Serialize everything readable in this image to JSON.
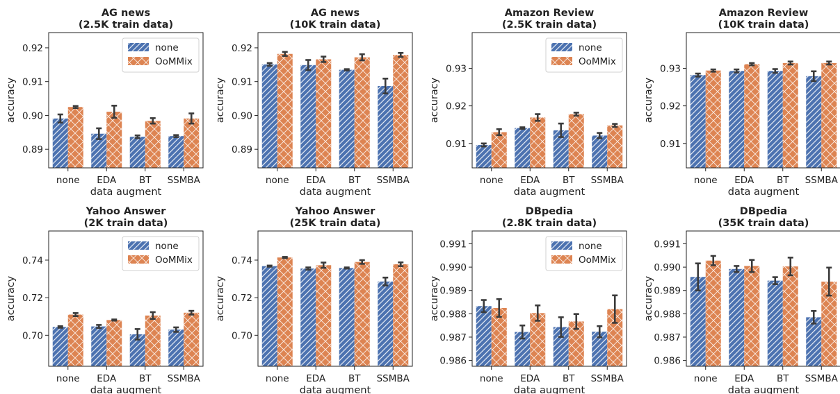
{
  "colors": {
    "none": "#4c72b0",
    "oommix": "#dd8452",
    "error": "#3b3b3b",
    "axis": "#222222"
  },
  "chart_data": [
    {
      "type": "bar",
      "title": "AG news\n(2.5K train data)",
      "xlabel": "data augment",
      "ylabel": "accuracy",
      "categories": [
        "none",
        "EDA",
        "BT",
        "SSMBA"
      ],
      "ylim": [
        0.8845,
        0.9245
      ],
      "yticks": [
        0.89,
        0.9,
        0.91,
        0.92
      ],
      "ytick_labels": [
        "0.89",
        "0.90",
        "0.91",
        "0.92"
      ],
      "legend": {
        "show": true,
        "position": "top-right"
      },
      "series": [
        {
          "name": "none",
          "values": [
            0.8991,
            0.8946,
            0.8937,
            0.8939
          ],
          "err": [
            0.0012,
            0.0016,
            0.0004,
            0.0003
          ]
        },
        {
          "name": "OoMMix",
          "values": [
            0.9025,
            0.9011,
            0.8984,
            0.8991
          ],
          "err": [
            0.0003,
            0.0018,
            0.0008,
            0.0015
          ]
        }
      ]
    },
    {
      "type": "bar",
      "title": "AG news\n(10K train data)",
      "xlabel": "data augment",
      "ylabel": "accuracy",
      "categories": [
        "none",
        "EDA",
        "BT",
        "SSMBA"
      ],
      "ylim": [
        0.8845,
        0.9245
      ],
      "yticks": [
        0.89,
        0.9,
        0.91,
        0.92
      ],
      "ytick_labels": [
        "0.89",
        "0.90",
        "0.91",
        "0.92"
      ],
      "legend": {
        "show": false,
        "position": ""
      },
      "series": [
        {
          "name": "none",
          "values": [
            0.9151,
            0.9149,
            0.9135,
            0.9087
          ],
          "err": [
            0.0004,
            0.0015,
            0.0002,
            0.0022
          ]
        },
        {
          "name": "OoMMix",
          "values": [
            0.9182,
            0.9166,
            0.9172,
            0.9179
          ],
          "err": [
            0.0006,
            0.0008,
            0.0009,
            0.0006
          ]
        }
      ]
    },
    {
      "type": "bar",
      "title": "Amazon Review\n(2.5K train data)",
      "xlabel": "data augment",
      "ylabel": "accuracy",
      "categories": [
        "none",
        "EDA",
        "BT",
        "SSMBA"
      ],
      "ylim": [
        0.9035,
        0.9395
      ],
      "yticks": [
        0.91,
        0.92,
        0.93
      ],
      "ytick_labels": [
        "0.91",
        "0.92",
        "0.93"
      ],
      "legend": {
        "show": true,
        "position": "top-right"
      },
      "series": [
        {
          "name": "none",
          "values": [
            0.9096,
            0.9141,
            0.9135,
            0.9121
          ],
          "err": [
            0.0004,
            0.0002,
            0.0018,
            0.0007
          ]
        },
        {
          "name": "OoMMix",
          "values": [
            0.913,
            0.9169,
            0.9178,
            0.9148
          ],
          "err": [
            0.0008,
            0.0009,
            0.0004,
            0.0004
          ]
        }
      ]
    },
    {
      "type": "bar",
      "title": "Amazon Review\n(10K train data)",
      "xlabel": "data augment",
      "ylabel": "accuracy",
      "categories": [
        "none",
        "EDA",
        "BT",
        "SSMBA"
      ],
      "ylim": [
        0.9035,
        0.9395
      ],
      "yticks": [
        0.91,
        0.92,
        0.93
      ],
      "ytick_labels": [
        "0.91",
        "0.92",
        "0.93"
      ],
      "legend": {
        "show": false,
        "position": ""
      },
      "series": [
        {
          "name": "none",
          "values": [
            0.9282,
            0.9293,
            0.9293,
            0.9279
          ],
          "err": [
            0.0004,
            0.0004,
            0.0005,
            0.0013
          ]
        },
        {
          "name": "OoMMix",
          "values": [
            0.9294,
            0.9311,
            0.9314,
            0.9314
          ],
          "err": [
            0.0003,
            0.0003,
            0.0004,
            0.0004
          ]
        }
      ]
    },
    {
      "type": "bar",
      "title": "Yahoo Answer\n(2K train data)",
      "xlabel": "data augment",
      "ylabel": "accuracy",
      "categories": [
        "none",
        "EDA",
        "BT",
        "SSMBA"
      ],
      "ylim": [
        0.6835,
        0.7555
      ],
      "yticks": [
        0.7,
        0.72,
        0.74
      ],
      "ytick_labels": [
        "0.70",
        "0.72",
        "0.74"
      ],
      "legend": {
        "show": true,
        "position": "top-right"
      },
      "series": [
        {
          "name": "none",
          "values": [
            0.7044,
            0.7047,
            0.7005,
            0.703
          ],
          "err": [
            0.0004,
            0.0008,
            0.0028,
            0.0012
          ]
        },
        {
          "name": "OoMMix",
          "values": [
            0.711,
            0.7081,
            0.7105,
            0.712
          ],
          "err": [
            0.0008,
            0.0003,
            0.0018,
            0.001
          ]
        }
      ]
    },
    {
      "type": "bar",
      "title": "Yahoo Answer\n(25K train data)",
      "xlabel": "data augment",
      "ylabel": "accuracy",
      "categories": [
        "none",
        "EDA",
        "BT",
        "SSMBA"
      ],
      "ylim": [
        0.6835,
        0.7555
      ],
      "yticks": [
        0.7,
        0.72,
        0.74
      ],
      "ytick_labels": [
        "0.70",
        "0.72",
        "0.74"
      ],
      "legend": {
        "show": false,
        "position": ""
      },
      "series": [
        {
          "name": "none",
          "values": [
            0.7368,
            0.7355,
            0.7358,
            0.7286
          ],
          "err": [
            0.0003,
            0.0006,
            0.0003,
            0.0021
          ]
        },
        {
          "name": "OoMMix",
          "values": [
            0.7414,
            0.7373,
            0.739,
            0.7378
          ],
          "err": [
            0.0003,
            0.0014,
            0.001,
            0.001
          ]
        }
      ]
    },
    {
      "type": "bar",
      "title": "DBpedia\n(2.8K train data)",
      "xlabel": "data augment",
      "ylabel": "accuracy",
      "categories": [
        "none",
        "EDA",
        "BT",
        "SSMBA"
      ],
      "ylim": [
        0.98575,
        0.99155
      ],
      "yticks": [
        0.986,
        0.987,
        0.988,
        0.989,
        0.99,
        0.991
      ],
      "ytick_labels": [
        "0.986",
        "0.987",
        "0.988",
        "0.989",
        "0.990",
        "0.991"
      ],
      "legend": {
        "show": true,
        "position": "top-right"
      },
      "series": [
        {
          "name": "none",
          "values": [
            0.98833,
            0.98722,
            0.98743,
            0.98723
          ],
          "err": [
            0.00026,
            0.00028,
            0.00042,
            0.00024
          ]
        },
        {
          "name": "OoMMix",
          "values": [
            0.98825,
            0.98803,
            0.98767,
            0.9882
          ],
          "err": [
            0.00038,
            0.00033,
            0.00032,
            0.00059
          ]
        }
      ]
    },
    {
      "type": "bar",
      "title": "DBpedia\n(35K train data)",
      "xlabel": "data augment",
      "ylabel": "accuracy",
      "categories": [
        "none",
        "EDA",
        "BT",
        "SSMBA"
      ],
      "ylim": [
        0.98575,
        0.99155
      ],
      "yticks": [
        0.986,
        0.987,
        0.988,
        0.989,
        0.99,
        0.991
      ],
      "ytick_labels": [
        "0.986",
        "0.987",
        "0.988",
        "0.989",
        "0.990",
        "0.991"
      ],
      "legend": {
        "show": false,
        "position": ""
      },
      "series": [
        {
          "name": "none",
          "values": [
            0.98958,
            0.98992,
            0.98942,
            0.98785
          ],
          "err": [
            0.00058,
            0.00013,
            0.00015,
            0.00027
          ]
        },
        {
          "name": "OoMMix",
          "values": [
            0.99028,
            0.99005,
            0.99003,
            0.98938
          ],
          "err": [
            0.0002,
            0.00026,
            0.00038,
            0.0006
          ]
        }
      ]
    }
  ]
}
